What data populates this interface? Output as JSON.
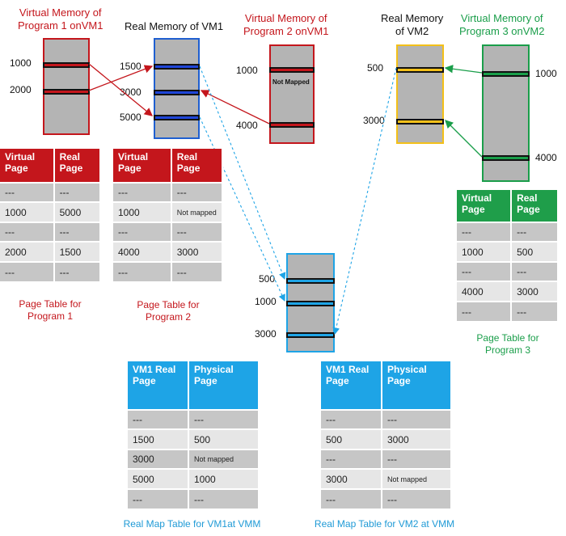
{
  "titles": {
    "vm1_prog1": [
      "Virtual Memory of",
      "Program 1 onVM1"
    ],
    "vm1_real": [
      "Real Memory of VM1"
    ],
    "vm1_prog2": [
      "Virtual Memory of",
      "Program 2 onVM1"
    ],
    "vm2_real": [
      "Real Memory",
      "of VM2"
    ],
    "vm2_prog3": [
      "Virtual Memory of",
      "Program 3 onVM2"
    ]
  },
  "addresses": {
    "prog1": [
      "1000",
      "2000"
    ],
    "vm1_real": [
      "1500",
      "3000",
      "5000"
    ],
    "prog2": [
      "1000",
      "4000"
    ],
    "prog2_not_mapped": "Not Mapped",
    "vm2_real": [
      "500",
      "3000"
    ],
    "prog3": [
      "1000",
      "4000"
    ],
    "physical": [
      "500",
      "1000",
      "3000"
    ]
  },
  "page_tables": {
    "program1": {
      "headers": [
        "Virtual Page",
        "Real Page"
      ],
      "rows": [
        [
          "---",
          "---"
        ],
        [
          "1000",
          "5000"
        ],
        [
          "---",
          "---"
        ],
        [
          "2000",
          "1500"
        ],
        [
          "---",
          "---"
        ]
      ],
      "caption": [
        "Page Table for",
        "Program 1"
      ]
    },
    "program2": {
      "headers": [
        "Virtual Page",
        "Real Page"
      ],
      "rows": [
        [
          "---",
          "---"
        ],
        [
          "1000",
          "Not mapped"
        ],
        [
          "---",
          "---"
        ],
        [
          "4000",
          "3000"
        ],
        [
          "---",
          "---"
        ]
      ],
      "caption": [
        "Page Table for",
        "Program 2"
      ]
    },
    "program3": {
      "headers": [
        "Virtual Page",
        "Real Page"
      ],
      "rows": [
        [
          "---",
          "---"
        ],
        [
          "1000",
          "500"
        ],
        [
          "---",
          "---"
        ],
        [
          "4000",
          "3000"
        ],
        [
          "---",
          "---"
        ]
      ],
      "caption": [
        "Page Table for",
        "Program 3"
      ]
    }
  },
  "map_tables": {
    "vm1": {
      "headers": [
        "VM1 Real Page",
        "Physical Page"
      ],
      "rows": [
        [
          "---",
          "---"
        ],
        [
          "1500",
          "500"
        ],
        [
          "3000",
          "Not mapped"
        ],
        [
          "5000",
          "1000"
        ],
        [
          "---",
          "---"
        ]
      ],
      "caption": "Real Map Table for VM1at VMM"
    },
    "vm2": {
      "headers": [
        "VM1 Real Page",
        "Physical Page"
      ],
      "rows": [
        [
          "---",
          "---"
        ],
        [
          "500",
          "3000"
        ],
        [
          "---",
          "---"
        ],
        [
          "3000",
          "Not mapped"
        ],
        [
          "---",
          "---"
        ]
      ],
      "caption": "Real Map Table for VM2 at VMM"
    }
  },
  "colors": {
    "red": "#c4161c",
    "green": "#1a9e4a",
    "blue_border": "#1f5fd0",
    "blue_bar": "#1f45d8",
    "cyan": "#1ea4e6",
    "yellow": "#f3c019",
    "gray_block": "#b4b4b4"
  }
}
